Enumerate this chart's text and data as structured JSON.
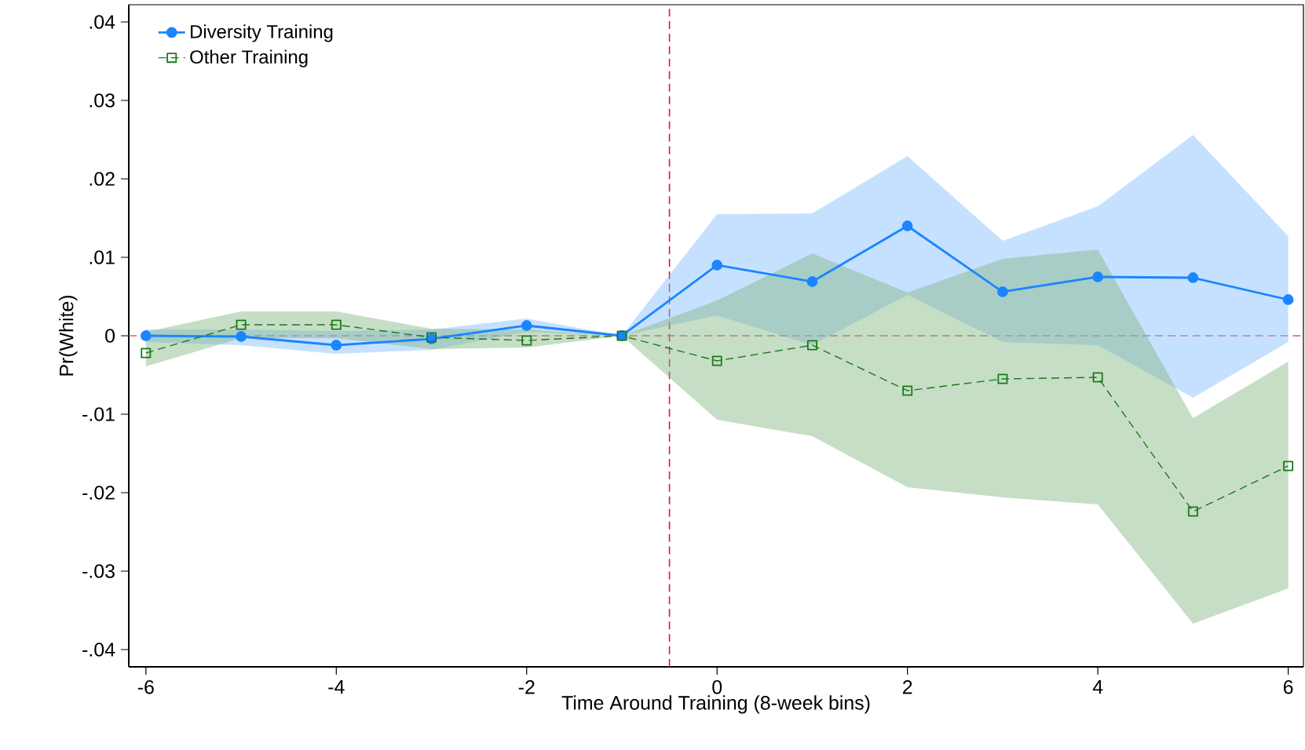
{
  "chart_data": {
    "type": "line",
    "xlabel": "Time Around Training (8-week bins)",
    "ylabel": "Pr(White)",
    "x": [
      -6,
      -5,
      -4,
      -3,
      -2,
      -1,
      0,
      1,
      2,
      3,
      4,
      5,
      6
    ],
    "series": [
      {
        "name": "Diversity Training",
        "color": "#1a85ff",
        "marker": "circle",
        "line_style": "solid",
        "values": [
          0,
          -0.0001,
          -0.0012,
          -0.0004,
          0.0013,
          0,
          0.009,
          0.0069,
          0.014,
          0.0056,
          0.0075,
          0.0074,
          0.0046
        ],
        "upper": [
          0.0008,
          0.0008,
          0.0006,
          0.0008,
          0.0022,
          0,
          0.0155,
          0.0156,
          0.0229,
          0.0121,
          0.0165,
          0.0256,
          0.0127
        ],
        "lower": [
          -0.0008,
          -0.0012,
          -0.0023,
          -0.0018,
          0.0005,
          0,
          0.0026,
          -0.0012,
          0.0052,
          -0.0008,
          -0.0012,
          -0.0079,
          -0.0008
        ]
      },
      {
        "name": "Other Training",
        "color": "#1a7a1a",
        "marker": "square",
        "line_style": "dashed",
        "values": [
          -0.0022,
          0.0014,
          0.0014,
          -0.0002,
          -0.0006,
          0,
          -0.0032,
          -0.0012,
          -0.007,
          -0.0055,
          -0.0053,
          -0.0224,
          -0.0166
        ],
        "upper": [
          0.0005,
          0.0031,
          0.0031,
          0.0009,
          0.0008,
          0,
          0.0045,
          0.0105,
          0.0055,
          0.0098,
          0.011,
          -0.0105,
          -0.0033
        ],
        "lower": [
          -0.0039,
          -0.0003,
          -0.0003,
          -0.0017,
          -0.0015,
          0,
          -0.0107,
          -0.0128,
          -0.0193,
          -0.0206,
          -0.0215,
          -0.0367,
          -0.0322
        ]
      }
    ],
    "xlim": [
      -6.18,
      6.16
    ],
    "ylim": [
      -0.0422,
      0.0422
    ],
    "xticks": [
      -6,
      -4,
      -2,
      0,
      2,
      4,
      6
    ],
    "yticks": [
      {
        "value": -0.04,
        "label": "-.04"
      },
      {
        "value": -0.03,
        "label": "-.03"
      },
      {
        "value": -0.02,
        "label": "-.02"
      },
      {
        "value": -0.01,
        "label": "-.01"
      },
      0,
      {
        "value": 0.01,
        "label": ".01"
      },
      {
        "value": 0.02,
        "label": ".02"
      },
      {
        "value": 0.03,
        "label": ".03"
      },
      {
        "value": 0.04,
        "label": ".04"
      }
    ],
    "ref_lines": [
      {
        "axis": "x",
        "value": -0.5,
        "color": "#dc143c",
        "line_style": "dashed"
      },
      {
        "axis": "y",
        "value": 0,
        "color": "#c8607a",
        "line_style": "dashed"
      }
    ],
    "legend": "top left",
    "grid": false
  }
}
